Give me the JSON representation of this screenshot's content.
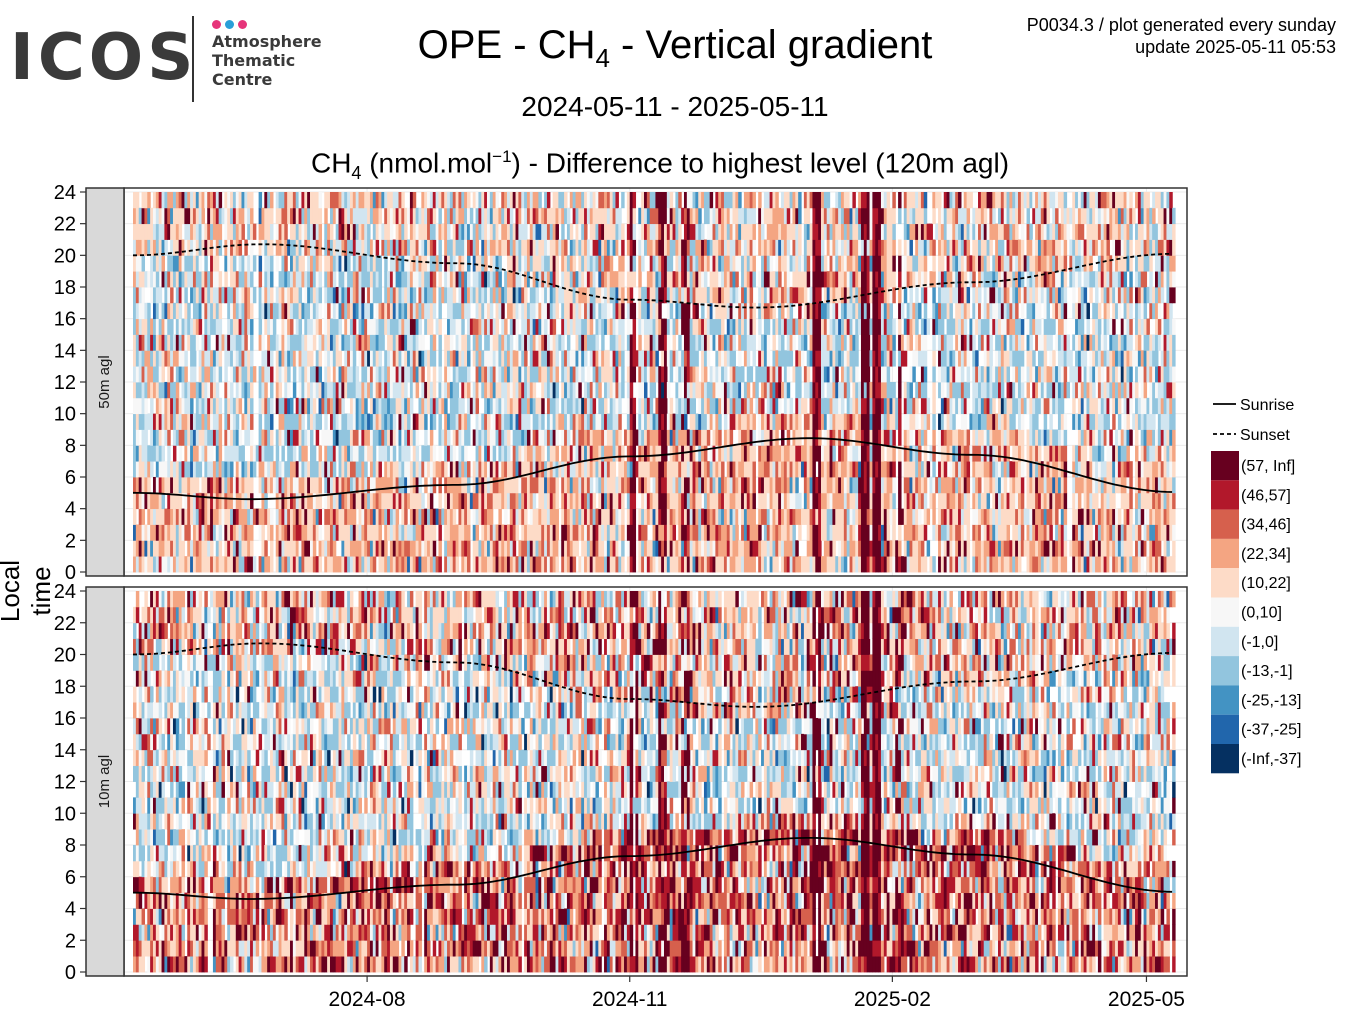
{
  "logo": {
    "name": "ICOS",
    "lines": [
      "Atmosphere",
      "Thematic",
      "Centre"
    ],
    "dot_colors": [
      "#e6357a",
      "#2a9fd8",
      "#e6357a"
    ]
  },
  "header": {
    "title_prefix": "OPE - CH",
    "title_sub": "4",
    "title_suffix": " - Vertical gradient",
    "period": "2024-05-11 - 2025-05-11",
    "subtitle_prefix": "CH",
    "subtitle_sub": "4",
    "subtitle_mid": " (nmol.mol",
    "subtitle_sup": "−1",
    "subtitle_suffix": ") - Difference to highest level (120m agl)",
    "meta_line1": "P0034.3 / plot generated every sunday",
    "meta_line2": "update  2025-05-11 05:53"
  },
  "chart_data": {
    "type": "heatmap",
    "ylabel": "Local time",
    "x_range": [
      "2024-05-11",
      "2025-05-11"
    ],
    "x_ticks": [
      "2024-08",
      "2024-11",
      "2025-02",
      "2025-05"
    ],
    "y_range": [
      0,
      24
    ],
    "y_ticks": [
      0,
      2,
      4,
      6,
      8,
      10,
      12,
      14,
      16,
      18,
      20,
      22,
      24
    ],
    "grid": true,
    "legend_position": "right",
    "panels": [
      {
        "label": "50m agl",
        "band_probs": {
          "night": [
            0.05,
            0.06,
            0.12,
            0.22,
            0.33,
            0.08,
            0.06,
            0.05,
            0.02,
            0.01,
            0.0
          ],
          "day": [
            0.02,
            0.03,
            0.05,
            0.08,
            0.12,
            0.22,
            0.18,
            0.24,
            0.04,
            0.015,
            0.005
          ],
          "evening": [
            0.03,
            0.04,
            0.08,
            0.16,
            0.25,
            0.14,
            0.12,
            0.14,
            0.03,
            0.01,
            0.0
          ]
        }
      },
      {
        "label": "10m agl",
        "band_probs": {
          "night": [
            0.16,
            0.15,
            0.18,
            0.16,
            0.17,
            0.06,
            0.05,
            0.04,
            0.02,
            0.01,
            0.0
          ],
          "day": [
            0.02,
            0.03,
            0.05,
            0.09,
            0.15,
            0.24,
            0.14,
            0.22,
            0.04,
            0.01,
            0.01
          ],
          "evening": [
            0.07,
            0.08,
            0.12,
            0.16,
            0.2,
            0.12,
            0.1,
            0.11,
            0.03,
            0.01,
            0.0
          ]
        }
      }
    ],
    "spikes": [
      {
        "date": "2024-11-02",
        "strength": 0.8
      },
      {
        "date": "2024-11-12",
        "strength": 0.7
      },
      {
        "date": "2024-11-20",
        "strength": 0.55
      },
      {
        "date": "2025-01-05",
        "strength": 0.9
      },
      {
        "date": "2025-01-22",
        "strength": 0.95
      },
      {
        "date": "2025-01-26",
        "strength": 1.0
      },
      {
        "date": "2025-02-03",
        "strength": 0.5
      }
    ],
    "sunrise": {
      "x": [
        "2024-05-11",
        "2024-06-21",
        "2024-09-01",
        "2024-11-01",
        "2025-01-03",
        "2025-03-01",
        "2025-05-11"
      ],
      "y": [
        5.0,
        4.6,
        5.5,
        7.3,
        8.45,
        7.4,
        5.05
      ]
    },
    "sunset": {
      "x": [
        "2024-05-11",
        "2024-06-25",
        "2024-09-01",
        "2024-11-01",
        "2024-12-15",
        "2025-03-01",
        "2025-05-11"
      ],
      "y": [
        20.0,
        20.7,
        19.5,
        17.2,
        16.7,
        18.3,
        20.1
      ]
    },
    "legend": [
      {
        "label": "Sunrise",
        "style": "solid"
      },
      {
        "label": "Sunset",
        "style": "dashed"
      }
    ],
    "bins": [
      {
        "label": "(57, Inf]",
        "color": "#67001f"
      },
      {
        "label": "(46,57]",
        "color": "#b2182b"
      },
      {
        "label": "(34,46]",
        "color": "#d6604d"
      },
      {
        "label": "(22,34]",
        "color": "#f4a582"
      },
      {
        "label": "(10,22]",
        "color": "#fddbc7"
      },
      {
        "label": "(0,10]",
        "color": "#f7f7f7"
      },
      {
        "label": "(-1,0]",
        "color": "#d1e5f0"
      },
      {
        "label": "(-13,-1]",
        "color": "#92c5de"
      },
      {
        "label": "(-25,-13]",
        "color": "#4393c3"
      },
      {
        "label": "(-37,-25]",
        "color": "#2166ac"
      },
      {
        "label": "(-Inf,-37]",
        "color": "#053061"
      }
    ]
  }
}
